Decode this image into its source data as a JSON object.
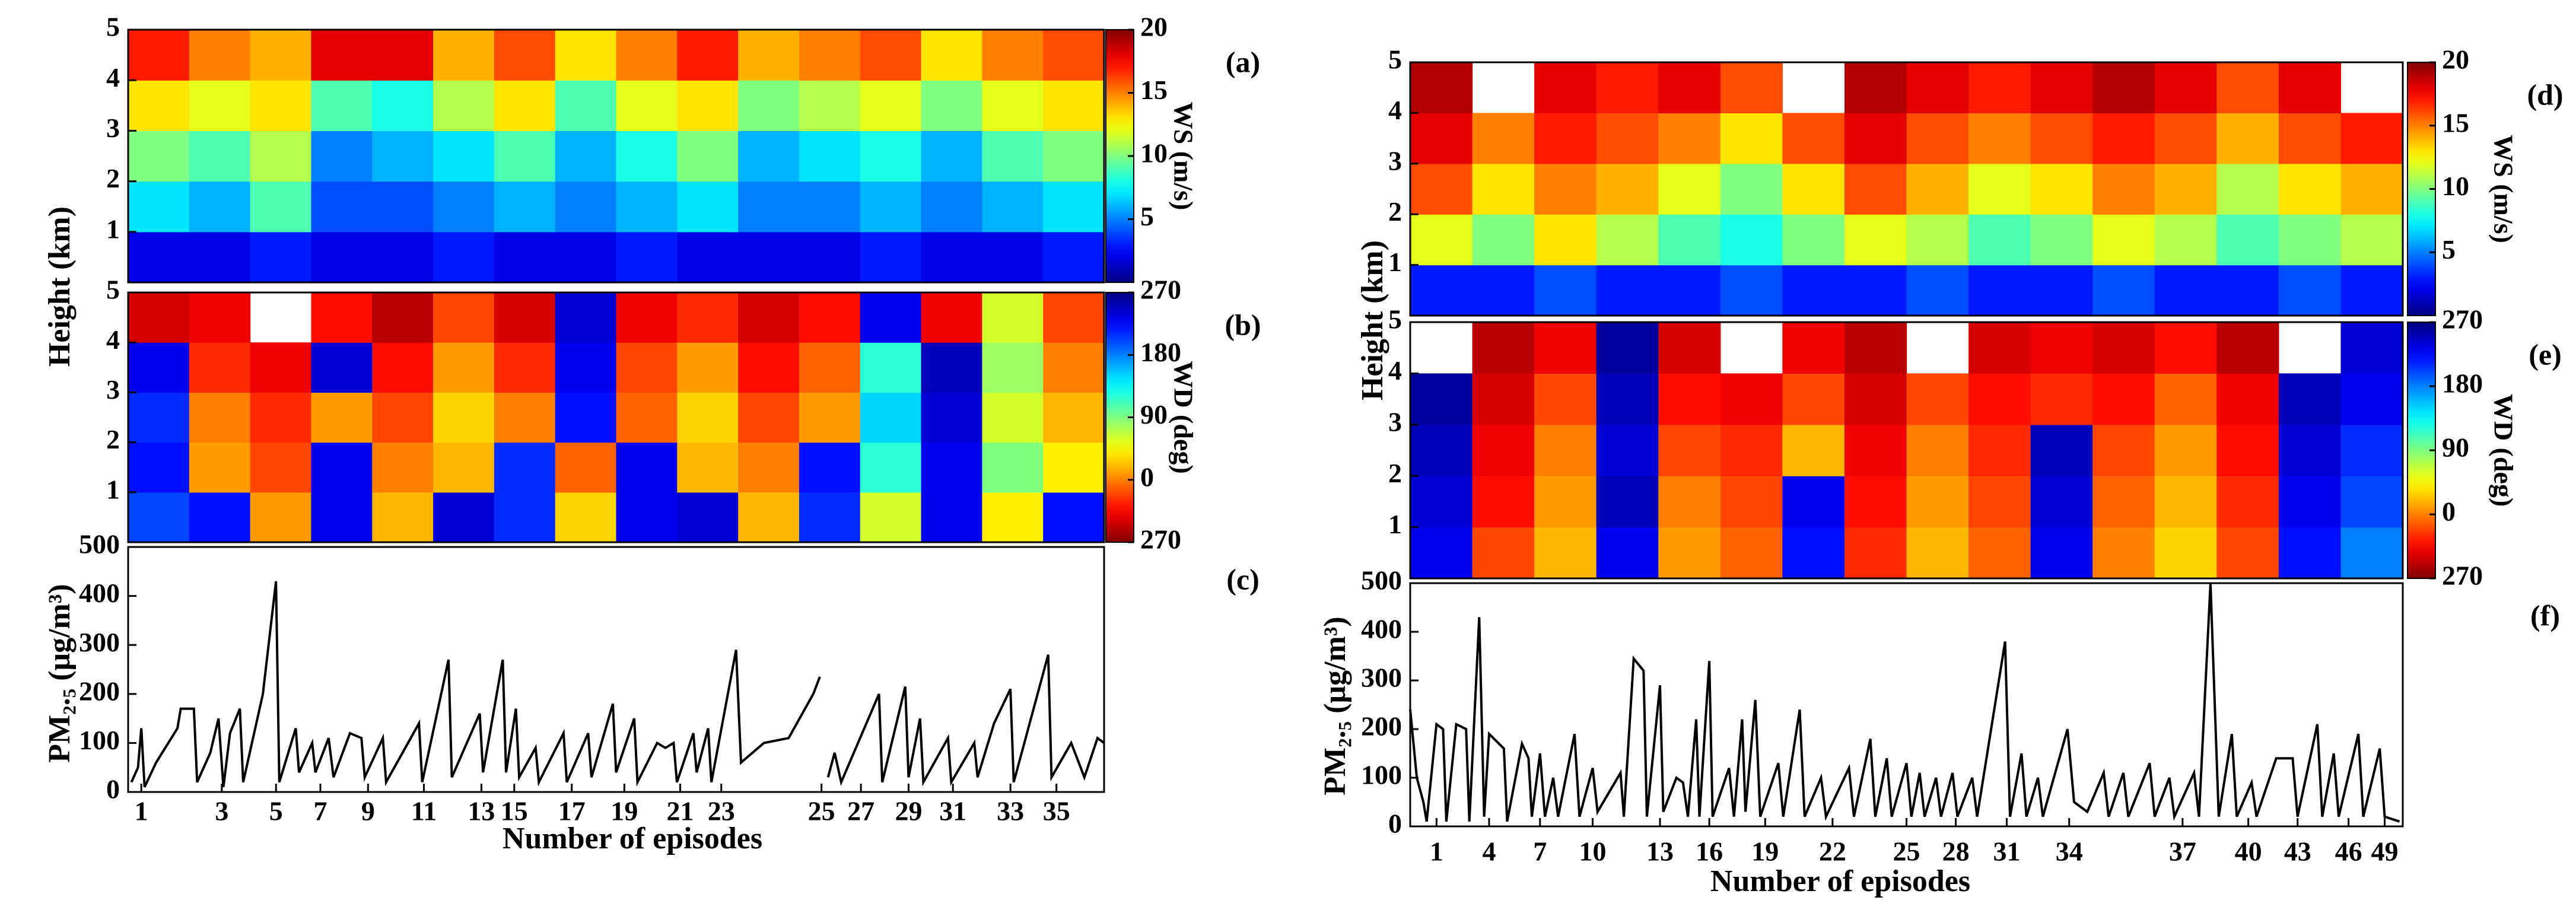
{
  "chart_data": [
    {
      "type": "heatmap",
      "panel_label": "(a)",
      "ylabel": "Height (km)",
      "ylim": [
        0,
        5
      ],
      "yticks": [
        1,
        2,
        3,
        4,
        5
      ],
      "colormap": "jet",
      "zlim": [
        0,
        20
      ],
      "zticks": [
        5,
        10,
        15,
        20
      ],
      "colorbar_label": "WS (m/s)",
      "z": [
        [
          2,
          2,
          3,
          2,
          2,
          3,
          2,
          2,
          3,
          2,
          2,
          2,
          3,
          2,
          2,
          3
        ],
        [
          7,
          6,
          9,
          4,
          4,
          5,
          6,
          5,
          6,
          7,
          5,
          5,
          6,
          5,
          6,
          7
        ],
        [
          10,
          9,
          11,
          5,
          6,
          7,
          9,
          6,
          8,
          10,
          6,
          7,
          8,
          6,
          9,
          10
        ],
        [
          13,
          12,
          13,
          9,
          8,
          11,
          13,
          9,
          12,
          13,
          10,
          11,
          12,
          10,
          12,
          13
        ],
        [
          17,
          15,
          14,
          18,
          18,
          14,
          16,
          13,
          15,
          17,
          14,
          15,
          16,
          13,
          15,
          16
        ]
      ]
    },
    {
      "type": "heatmap",
      "panel_label": "(b)",
      "ylim": [
        0,
        5
      ],
      "yticks": [
        1,
        2,
        3,
        4,
        5
      ],
      "colormap": "jet_r",
      "zlim": [
        -90,
        270
      ],
      "zticks": [
        {
          "value": -90,
          "label": "270"
        },
        0,
        90,
        180,
        270
      ],
      "colorbar_label": "WD (deg)",
      "z": [
        [
          200,
          220,
          10,
          230,
          20,
          240,
          210,
          30,
          230,
          240,
          20,
          210,
          60,
          230,
          40,
          220
        ],
        [
          220,
          10,
          -20,
          230,
          0,
          20,
          210,
          -10,
          230,
          20,
          0,
          220,
          120,
          230,
          90,
          40
        ],
        [
          210,
          0,
          -30,
          10,
          -20,
          30,
          0,
          220,
          -10,
          30,
          -20,
          10,
          150,
          240,
          60,
          20
        ],
        [
          230,
          -30,
          -50,
          240,
          -40,
          10,
          -30,
          230,
          -20,
          10,
          -40,
          -10,
          120,
          250,
          80,
          0
        ],
        [
          -60,
          -50,
          null,
          -40,
          -70,
          -20,
          -60,
          240,
          -50,
          -30,
          -60,
          -40,
          230,
          -50,
          60,
          -20
        ]
      ]
    },
    {
      "type": "line",
      "panel_label": "(c)",
      "ylabel": "PM₂.₅ (μg/m³)",
      "xlabel": "Number of episodes",
      "color": "#000000",
      "xlim": [
        0,
        594
      ],
      "ylim": [
        0,
        500
      ],
      "yticks": [
        0,
        100,
        200,
        300,
        400,
        500
      ],
      "xticks": [
        {
          "value": 8,
          "label": "1"
        },
        {
          "value": 57,
          "label": "3"
        },
        {
          "value": 90,
          "label": "5"
        },
        {
          "value": 117,
          "label": "7"
        },
        {
          "value": 146,
          "label": "9"
        },
        {
          "value": 180,
          "label": "11"
        },
        {
          "value": 215,
          "label": "13"
        },
        {
          "value": 235,
          "label": "15"
        },
        {
          "value": 270,
          "label": "17"
        },
        {
          "value": 302,
          "label": "19"
        },
        {
          "value": 336,
          "label": "21"
        },
        {
          "value": 361,
          "label": "23"
        },
        {
          "value": 422,
          "label": "25"
        },
        {
          "value": 446,
          "label": "27"
        },
        {
          "value": 475,
          "label": "29"
        },
        {
          "value": 502,
          "label": "31"
        },
        {
          "value": 537,
          "label": "33"
        },
        {
          "value": 565,
          "label": "35"
        }
      ],
      "x": [
        2,
        6,
        8,
        10,
        17,
        30,
        32,
        40,
        42,
        50,
        55,
        58,
        62,
        68,
        70,
        82,
        90,
        92,
        102,
        104,
        112,
        114,
        122,
        125,
        135,
        142,
        144,
        155,
        157,
        177,
        179,
        195,
        197,
        214,
        216,
        228,
        230,
        236,
        238,
        248,
        250,
        265,
        267,
        280,
        282,
        295,
        297,
        308,
        310,
        322,
        327,
        332,
        334,
        344,
        346,
        353,
        355,
        370,
        373,
        387,
        402,
        417,
        421,
        423,
        426,
        430,
        434,
        457,
        459,
        473,
        475,
        482,
        484,
        499,
        501,
        515,
        517,
        527,
        537,
        539,
        560,
        562,
        574,
        582,
        590,
        594
      ],
      "values": [
        20,
        50,
        130,
        10,
        60,
        130,
        170,
        170,
        20,
        80,
        150,
        10,
        120,
        170,
        20,
        200,
        430,
        20,
        130,
        40,
        100,
        40,
        110,
        30,
        120,
        110,
        30,
        110,
        20,
        140,
        20,
        270,
        30,
        160,
        40,
        270,
        40,
        170,
        30,
        90,
        20,
        120,
        20,
        120,
        30,
        180,
        40,
        150,
        20,
        100,
        90,
        100,
        20,
        120,
        40,
        130,
        20,
        290,
        60,
        100,
        110,
        200,
        235,
        null,
        30,
        80,
        20,
        200,
        20,
        215,
        30,
        150,
        20,
        110,
        20,
        100,
        30,
        140,
        210,
        20,
        280,
        30,
        100,
        30,
        110,
        100
      ]
    },
    {
      "type": "heatmap",
      "panel_label": "(d)",
      "ylabel": "Height (km)",
      "ylim": [
        0,
        5
      ],
      "yticks": [
        1,
        2,
        3,
        4,
        5
      ],
      "colormap": "jet",
      "zlim": [
        0,
        20
      ],
      "zticks": [
        5,
        10,
        15,
        20
      ],
      "colorbar_label": "WS (m/s)",
      "z": [
        [
          3,
          3,
          4,
          3,
          3,
          4,
          3,
          3,
          4,
          3,
          3,
          4,
          3,
          3,
          4,
          3
        ],
        [
          12,
          10,
          13,
          11,
          9,
          8,
          10,
          12,
          11,
          9,
          10,
          12,
          11,
          9,
          10,
          11
        ],
        [
          16,
          13,
          15,
          14,
          12,
          10,
          13,
          16,
          14,
          12,
          13,
          15,
          14,
          11,
          13,
          14
        ],
        [
          18,
          15,
          17,
          16,
          15,
          13,
          16,
          18,
          16,
          15,
          16,
          17,
          16,
          14,
          16,
          17
        ],
        [
          19,
          null,
          18,
          17,
          18,
          16,
          null,
          19,
          18,
          17,
          18,
          19,
          18,
          16,
          18,
          null
        ]
      ]
    },
    {
      "type": "heatmap",
      "panel_label": "(e)",
      "ylim": [
        0,
        5
      ],
      "yticks": [
        1,
        2,
        3,
        4,
        5
      ],
      "colormap": "jet_r",
      "zlim": [
        -90,
        270
      ],
      "zticks": [
        {
          "value": -90,
          "label": "270"
        },
        0,
        90,
        180,
        270
      ],
      "colorbar_label": "WD (deg)",
      "z": [
        [
          230,
          -20,
          20,
          230,
          10,
          -10,
          220,
          -30,
          20,
          -10,
          230,
          0,
          30,
          -20,
          220,
          180
        ],
        [
          240,
          -40,
          10,
          250,
          0,
          -20,
          230,
          -40,
          10,
          -20,
          240,
          -10,
          20,
          -30,
          230,
          200
        ],
        [
          250,
          -50,
          0,
          240,
          -20,
          -30,
          20,
          -50,
          0,
          -30,
          250,
          -20,
          10,
          -40,
          240,
          210
        ],
        [
          260,
          -60,
          -20,
          250,
          -40,
          -50,
          -20,
          -60,
          -20,
          -40,
          -30,
          -40,
          -10,
          -50,
          250,
          230
        ],
        [
          null,
          -70,
          -50,
          260,
          -60,
          null,
          -50,
          -70,
          null,
          -60,
          -50,
          -60,
          -40,
          -70,
          null,
          240
        ]
      ]
    },
    {
      "type": "line",
      "panel_label": "(f)",
      "ylabel": "PM₂.₅ (μg/m³)",
      "xlabel": "Number of episodes",
      "color": "#000000",
      "xlim": [
        0,
        604
      ],
      "ylim": [
        0,
        500
      ],
      "yticks": [
        0,
        100,
        200,
        300,
        400,
        500
      ],
      "xticks": [
        {
          "value": 16,
          "label": "1"
        },
        {
          "value": 48,
          "label": "4"
        },
        {
          "value": 79,
          "label": "7"
        },
        {
          "value": 111,
          "label": "10"
        },
        {
          "value": 152,
          "label": "13"
        },
        {
          "value": 182,
          "label": "16"
        },
        {
          "value": 216,
          "label": "19"
        },
        {
          "value": 257,
          "label": "22"
        },
        {
          "value": 302,
          "label": "25"
        },
        {
          "value": 332,
          "label": "28"
        },
        {
          "value": 363,
          "label": "31"
        },
        {
          "value": 401,
          "label": "34"
        },
        {
          "value": 470,
          "label": "37"
        },
        {
          "value": 510,
          "label": "40"
        },
        {
          "value": 540,
          "label": "43"
        },
        {
          "value": 571,
          "label": "46"
        },
        {
          "value": 593,
          "label": "49"
        }
      ],
      "x": [
        0,
        4,
        8,
        10,
        16,
        20,
        22,
        28,
        34,
        36,
        42,
        45,
        48,
        57,
        59,
        68,
        72,
        74,
        79,
        82,
        87,
        90,
        100,
        103,
        111,
        114,
        128,
        130,
        136,
        142,
        144,
        152,
        154,
        162,
        166,
        169,
        174,
        176,
        182,
        184,
        194,
        197,
        202,
        204,
        210,
        213,
        224,
        227,
        237,
        240,
        250,
        253,
        267,
        270,
        280,
        283,
        290,
        293,
        302,
        305,
        310,
        313,
        320,
        323,
        330,
        333,
        342,
        345,
        362,
        365,
        372,
        375,
        382,
        385,
        400,
        404,
        412,
        422,
        425,
        434,
        437,
        450,
        453,
        462,
        465,
        477,
        480,
        487,
        492,
        500,
        503,
        512,
        515,
        527,
        537,
        540,
        552,
        555,
        562,
        565,
        577,
        580,
        590,
        593,
        602
      ],
      "values": [
        240,
        100,
        50,
        10,
        210,
        200,
        10,
        210,
        200,
        10,
        430,
        20,
        190,
        160,
        10,
        170,
        140,
        20,
        150,
        20,
        100,
        20,
        190,
        20,
        120,
        30,
        110,
        20,
        345,
        320,
        20,
        290,
        30,
        100,
        90,
        20,
        220,
        20,
        340,
        20,
        120,
        20,
        220,
        30,
        260,
        20,
        130,
        20,
        240,
        20,
        100,
        20,
        120,
        20,
        180,
        20,
        140,
        20,
        130,
        20,
        110,
        20,
        100,
        20,
        110,
        20,
        100,
        20,
        380,
        20,
        150,
        20,
        100,
        20,
        200,
        50,
        30,
        110,
        20,
        110,
        20,
        130,
        20,
        100,
        20,
        110,
        20,
        500,
        20,
        190,
        20,
        90,
        20,
        140,
        140,
        20,
        210,
        20,
        150,
        20,
        190,
        20,
        160,
        20,
        10
      ]
    }
  ]
}
